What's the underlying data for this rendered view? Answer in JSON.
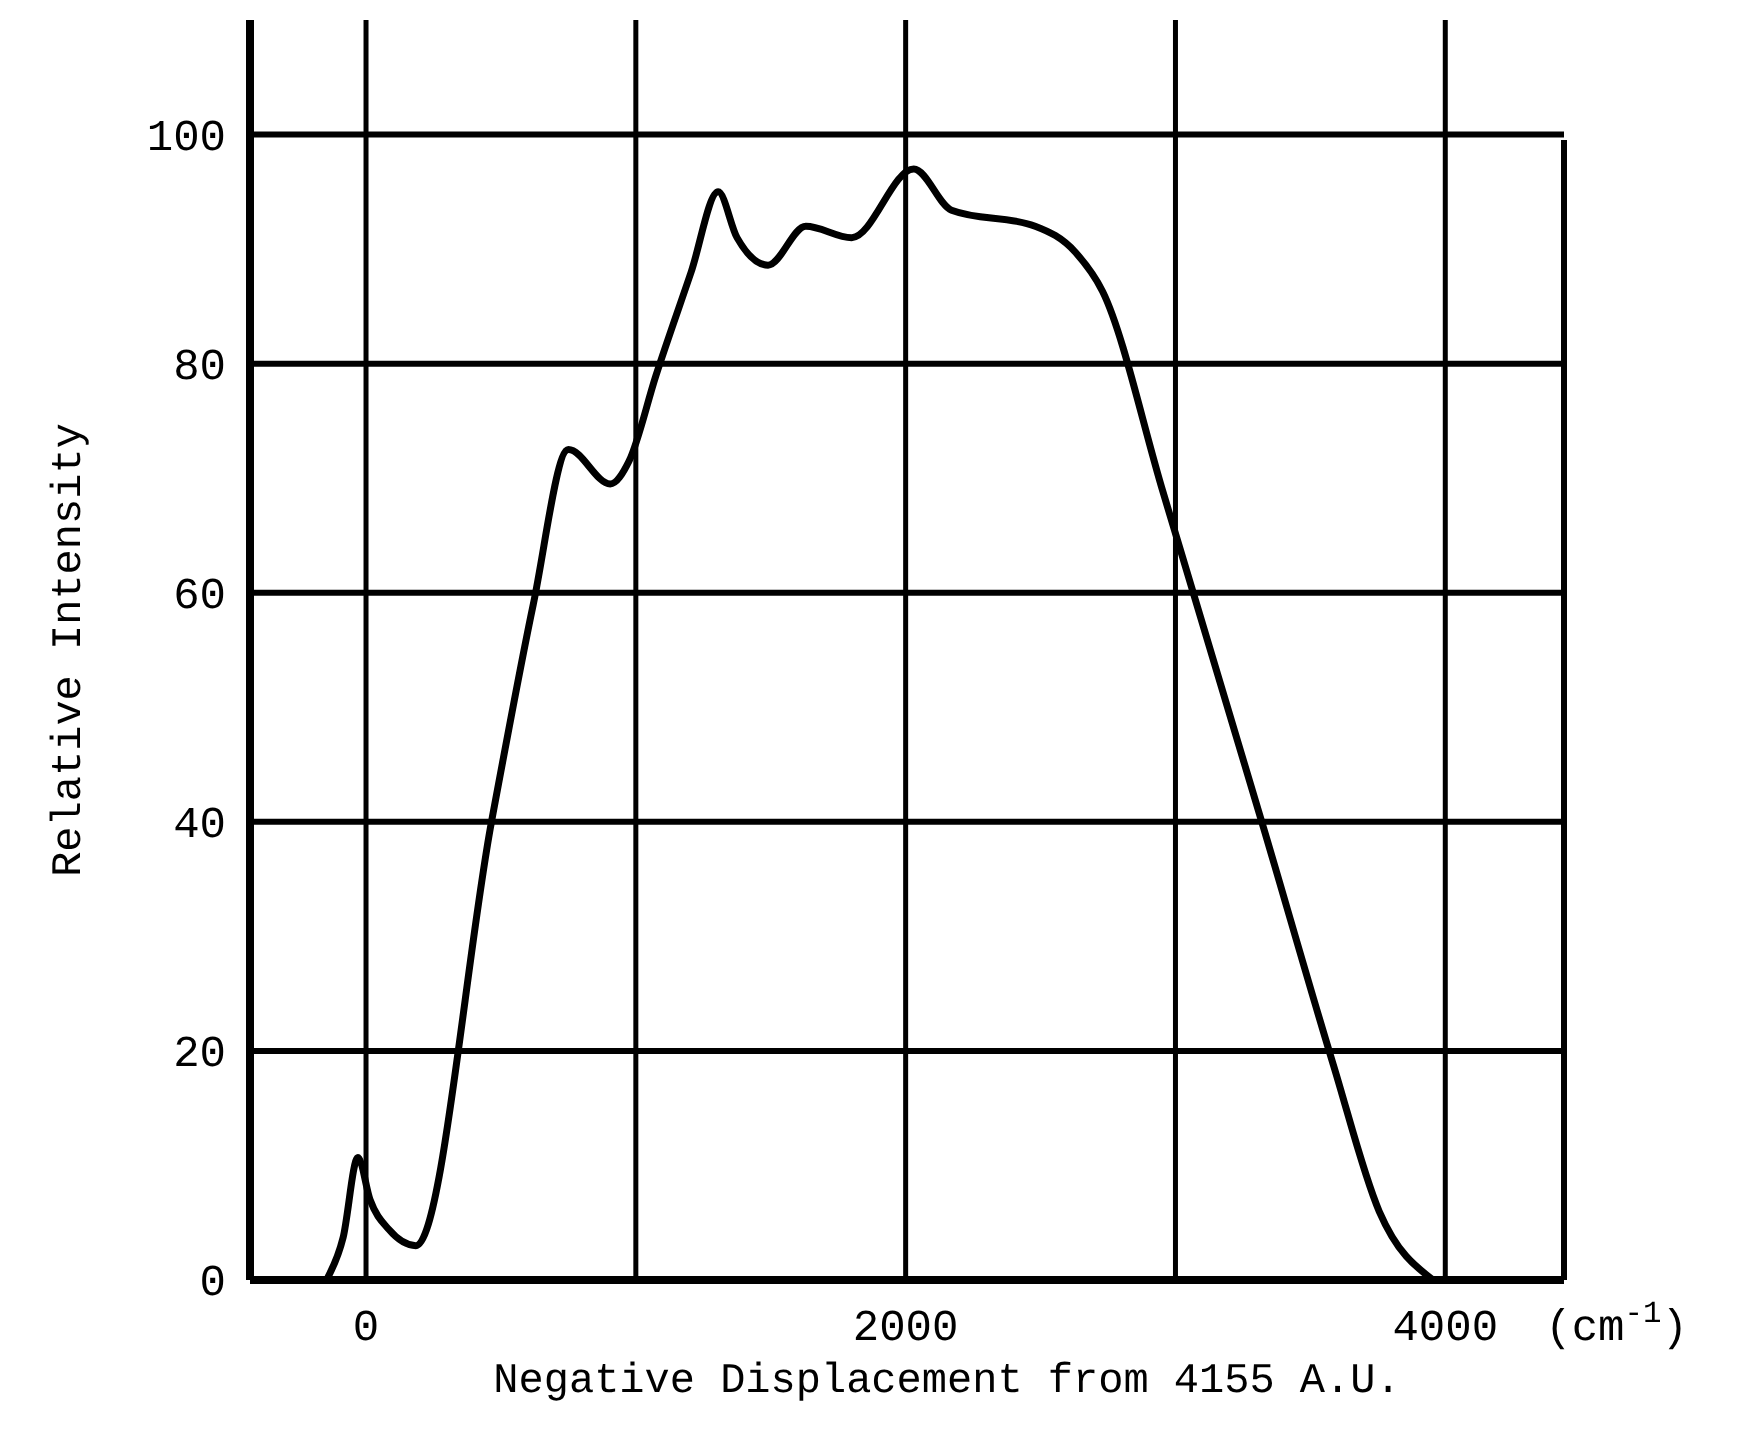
{
  "chart_data": {
    "type": "line",
    "xlabel": "Negative Displacement from 4155 A.U.",
    "ylabel": "Relative Intensity",
    "annotations": [
      "(cm$^{-1}$)"
    ],
    "xlim": [
      -430,
      4440
    ],
    "xticks": [
      0,
      {
        "value": 1000,
        "label": null
      },
      2000,
      {
        "value": 3000,
        "label": null
      },
      4000
    ],
    "ylim": [
      0,
      110
    ],
    "yticks": [
      0,
      20,
      40,
      60,
      80,
      100
    ],
    "grid": true,
    "marker": "none",
    "line_style": "solid",
    "series": [
      {
        "color": "#000000",
        "x": [
          -140,
          -85,
          -30,
          15,
          85,
          185,
          465,
          620,
          750,
          905,
          975,
          1075,
          1205,
          1305,
          1375,
          1490,
          1630,
          1800,
          2030,
          2170,
          2480,
          2630,
          2730,
          2955,
          3325,
          3585,
          3755,
          3955
        ],
        "values": [
          0.3,
          3.7,
          10.7,
          7,
          4.4,
          3,
          40,
          59,
          72.5,
          69.5,
          71.5,
          79,
          88,
          95,
          91,
          88.6,
          92,
          91,
          97,
          93.4,
          92,
          89.7,
          86.3,
          68.7,
          39.6,
          18.8,
          6,
          0
        ]
      }
    ]
  }
}
